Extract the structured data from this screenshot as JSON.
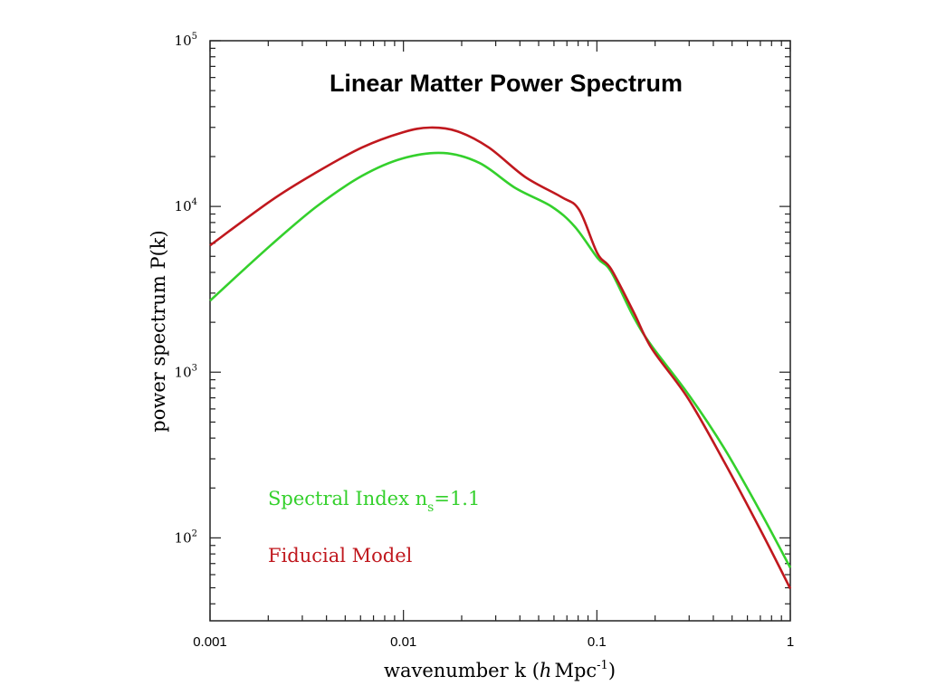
{
  "chart_data": {
    "type": "line",
    "title": "Linear Matter Power Spectrum",
    "xlabel": "wavenumber k (hMpc⁻¹)",
    "xlabel_parts": {
      "pre": "wavenumber k (",
      "italic": "h",
      "mid": "Mpc",
      "sup": "-1",
      "post": ")"
    },
    "ylabel": "power spectrum P(k)",
    "xscale": "log",
    "yscale": "log",
    "xlim": [
      0.001,
      1
    ],
    "ylim": [
      31.6,
      100000
    ],
    "grid": false,
    "x_ticks": [
      {
        "value": 0.001,
        "label": "0.001"
      },
      {
        "value": 0.01,
        "label": "0.01"
      },
      {
        "value": 0.1,
        "label": "0.1"
      },
      {
        "value": 1,
        "label": "1"
      }
    ],
    "y_ticks": [
      {
        "value": 100,
        "base": "10",
        "exp": "2"
      },
      {
        "value": 1000,
        "base": "10",
        "exp": "3"
      },
      {
        "value": 10000,
        "base": "10",
        "exp": "4"
      },
      {
        "value": 100000,
        "base": "10",
        "exp": "5"
      }
    ],
    "legend_position": "bottom-left",
    "series": [
      {
        "name": "Fiducial Model",
        "legend_label": "Fiducial Model",
        "color": "#c0181e",
        "x": [
          0.001,
          0.00208,
          0.00356,
          0.00611,
          0.00993,
          0.0137,
          0.019,
          0.0276,
          0.0425,
          0.0655,
          0.0811,
          0.1007,
          0.1183,
          0.155,
          0.192,
          0.296,
          0.455,
          0.7,
          1.0
        ],
        "y": [
          5820,
          10900,
          16100,
          22700,
          28000,
          29900,
          28400,
          22700,
          15100,
          11400,
          9510,
          5200,
          4200,
          2300,
          1390,
          695,
          288,
          112,
          49.4
        ]
      },
      {
        "name": "Spectral Index ns=1.1",
        "legend_label": "Spectral Index n",
        "legend_sub": "s",
        "legend_suffix": "=1.1",
        "color": "#34d02c",
        "x": [
          0.001,
          0.00208,
          0.00356,
          0.00611,
          0.00993,
          0.0161,
          0.0247,
          0.038,
          0.0582,
          0.0766,
          0.1007,
          0.1183,
          0.155,
          0.192,
          0.296,
          0.455,
          0.7,
          1.0
        ],
        "y": [
          2700,
          5890,
          10000,
          15300,
          19500,
          21000,
          18300,
          12900,
          10000,
          7590,
          4890,
          4050,
          2150,
          1440,
          740,
          348,
          144,
          66
        ]
      }
    ]
  }
}
